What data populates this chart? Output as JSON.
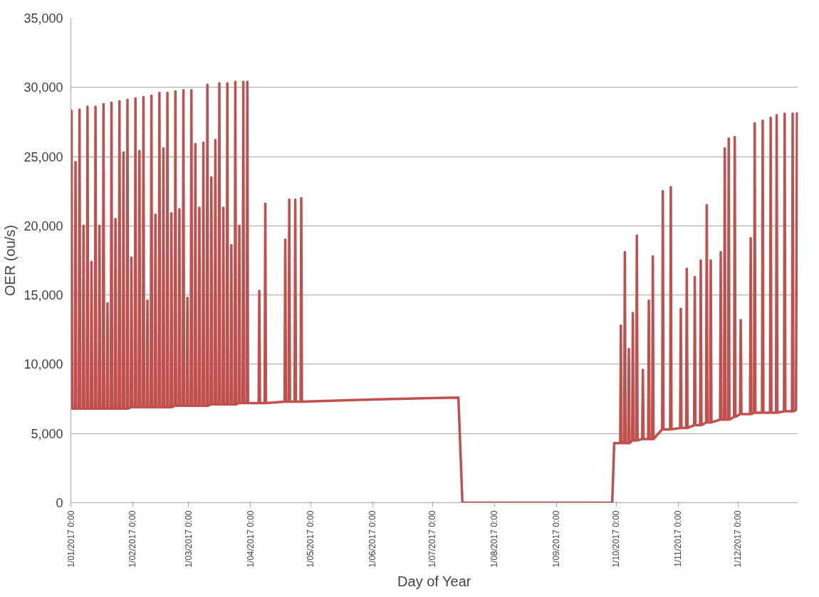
{
  "chart_data": {
    "type": "line",
    "xlabel": "Day of Year",
    "ylabel": "OER (ou/s)",
    "xlim": [
      "2017-01-01",
      "2017-12-31"
    ],
    "xticks": [
      {
        "value": "2017-01-01",
        "label": "1/01/2017 0:00"
      },
      {
        "value": "2017-02-01",
        "label": "1/02/2017 0:00"
      },
      {
        "value": "2017-03-01",
        "label": "1/03/2017 0:00"
      },
      {
        "value": "2017-04-01",
        "label": "1/04/2017 0:00"
      },
      {
        "value": "2017-05-01",
        "label": "1/05/2017 0:00"
      },
      {
        "value": "2017-06-01",
        "label": "1/06/2017 0:00"
      },
      {
        "value": "2017-07-01",
        "label": "1/07/2017 0:00"
      },
      {
        "value": "2017-08-01",
        "label": "1/08/2017 0:00"
      },
      {
        "value": "2017-09-01",
        "label": "1/09/2017 0:00"
      },
      {
        "value": "2017-10-01",
        "label": "1/10/2017 0:00"
      },
      {
        "value": "2017-11-01",
        "label": "1/11/2017 0:00"
      },
      {
        "value": "2017-12-01",
        "label": "1/12/2017 0:00"
      }
    ],
    "ylim": [
      0,
      35000
    ],
    "yticks": [
      0,
      {
        "value": 5000,
        "label": "5,000"
      },
      {
        "value": 10000,
        "label": "10,000"
      },
      {
        "value": 15000,
        "label": "15,000"
      },
      {
        "value": 20000,
        "label": "20,000"
      },
      {
        "value": 25000,
        "label": "25,000"
      },
      {
        "value": 30000,
        "label": "30,000"
      },
      {
        "value": 35000,
        "label": "35,000"
      }
    ],
    "grid": "y",
    "marker": "none",
    "line_style": "solid",
    "series": [
      {
        "color": "#c0504d",
        "x": [
          "2017-01-01T00:00",
          "2017-01-01T08:00",
          "2017-01-01T16:00",
          "2017-01-03T00:00",
          "2017-01-03T08:00",
          "2017-01-03T16:00",
          "2017-01-05T00:00",
          "2017-01-05T08:00",
          "2017-01-05T16:00",
          "2017-01-07T00:00",
          "2017-01-07T08:00",
          "2017-01-07T16:00",
          "2017-01-09T00:00",
          "2017-01-09T08:00",
          "2017-01-09T16:00",
          "2017-01-11T00:00",
          "2017-01-11T08:00",
          "2017-01-11T16:00",
          "2017-01-13T00:00",
          "2017-01-13T08:00",
          "2017-01-13T16:00",
          "2017-01-15T00:00",
          "2017-01-15T08:00",
          "2017-01-15T16:00",
          "2017-01-17T00:00",
          "2017-01-17T08:00",
          "2017-01-17T16:00",
          "2017-01-19T00:00",
          "2017-01-19T08:00",
          "2017-01-19T16:00",
          "2017-01-21T00:00",
          "2017-01-21T08:00",
          "2017-01-21T16:00",
          "2017-01-23T00:00",
          "2017-01-23T08:00",
          "2017-01-23T16:00",
          "2017-01-25T00:00",
          "2017-01-25T08:00",
          "2017-01-25T16:00",
          "2017-01-27T00:00",
          "2017-01-27T08:00",
          "2017-01-27T16:00",
          "2017-01-29T00:00",
          "2017-01-29T08:00",
          "2017-01-29T16:00",
          "2017-01-31T00:00",
          "2017-01-31T08:00",
          "2017-01-31T16:00",
          "2017-02-02T00:00",
          "2017-02-02T08:00",
          "2017-02-02T16:00",
          "2017-02-04T00:00",
          "2017-02-04T08:00",
          "2017-02-04T16:00",
          "2017-02-06T00:00",
          "2017-02-06T08:00",
          "2017-02-06T16:00",
          "2017-02-08T00:00",
          "2017-02-08T08:00",
          "2017-02-08T16:00",
          "2017-02-10T00:00",
          "2017-02-10T08:00",
          "2017-02-10T16:00",
          "2017-02-12T00:00",
          "2017-02-12T08:00",
          "2017-02-12T16:00",
          "2017-02-14T00:00",
          "2017-02-14T08:00",
          "2017-02-14T16:00",
          "2017-02-16T00:00",
          "2017-02-16T08:00",
          "2017-02-16T16:00",
          "2017-02-18T00:00",
          "2017-02-18T08:00",
          "2017-02-18T16:00",
          "2017-02-20T00:00",
          "2017-02-20T08:00",
          "2017-02-20T16:00",
          "2017-02-22T00:00",
          "2017-02-22T08:00",
          "2017-02-22T16:00",
          "2017-02-24T00:00",
          "2017-02-24T08:00",
          "2017-02-24T16:00",
          "2017-02-26T00:00",
          "2017-02-26T08:00",
          "2017-02-26T16:00",
          "2017-02-28T00:00",
          "2017-02-28T08:00",
          "2017-02-28T16:00",
          "2017-03-02T00:00",
          "2017-03-02T08:00",
          "2017-03-02T16:00",
          "2017-03-04T00:00",
          "2017-03-04T08:00",
          "2017-03-04T16:00",
          "2017-03-06T00:00",
          "2017-03-06T08:00",
          "2017-03-06T16:00",
          "2017-03-08T00:00",
          "2017-03-08T08:00",
          "2017-03-08T16:00",
          "2017-03-10T00:00",
          "2017-03-10T08:00",
          "2017-03-10T16:00",
          "2017-03-12T00:00",
          "2017-03-12T08:00",
          "2017-03-12T16:00",
          "2017-03-14T00:00",
          "2017-03-14T08:00",
          "2017-03-14T16:00",
          "2017-03-16T00:00",
          "2017-03-16T08:00",
          "2017-03-16T16:00",
          "2017-03-18T00:00",
          "2017-03-18T08:00",
          "2017-03-18T16:00",
          "2017-03-20T00:00",
          "2017-03-20T08:00",
          "2017-03-20T16:00",
          "2017-03-22T00:00",
          "2017-03-22T08:00",
          "2017-03-22T16:00",
          "2017-03-24T00:00",
          "2017-03-24T08:00",
          "2017-03-24T16:00",
          "2017-03-26T00:00",
          "2017-03-26T08:00",
          "2017-03-26T16:00",
          "2017-03-28T00:00",
          "2017-03-28T08:00",
          "2017-03-28T16:00",
          "2017-03-30T00:00",
          "2017-03-30T08:00",
          "2017-03-30T16:00",
          "2017-04-05T00:00",
          "2017-04-05T08:00",
          "2017-04-05T16:00",
          "2017-04-08T00:00",
          "2017-04-08T08:00",
          "2017-04-08T16:00",
          "2017-04-18T00:00",
          "2017-04-18T08:00",
          "2017-04-18T16:00",
          "2017-04-20T00:00",
          "2017-04-20T08:00",
          "2017-04-20T16:00",
          "2017-04-23T00:00",
          "2017-04-23T08:00",
          "2017-04-23T16:00",
          "2017-04-26T00:00",
          "2017-04-26T08:00",
          "2017-04-26T16:00",
          "2017-05-31T00:00",
          "2017-06-30T00:00",
          "2017-07-14T00:00",
          "2017-07-16T00:00",
          "2017-09-29T00:00",
          "2017-09-30T00:00",
          "2017-10-03T00:00",
          "2017-10-03T08:00",
          "2017-10-03T16:00",
          "2017-10-05T00:00",
          "2017-10-05T08:00",
          "2017-10-05T16:00",
          "2017-10-07T00:00",
          "2017-10-07T08:00",
          "2017-10-07T16:00",
          "2017-10-09T00:00",
          "2017-10-09T08:00",
          "2017-10-09T16:00",
          "2017-10-11T00:00",
          "2017-10-11T08:00",
          "2017-10-11T16:00",
          "2017-10-14T00:00",
          "2017-10-14T08:00",
          "2017-10-14T16:00",
          "2017-10-17T00:00",
          "2017-10-17T08:00",
          "2017-10-17T16:00",
          "2017-10-19T00:00",
          "2017-10-19T08:00",
          "2017-10-19T16:00",
          "2017-10-24T00:00",
          "2017-10-24T08:00",
          "2017-10-24T16:00",
          "2017-10-28T00:00",
          "2017-10-28T08:00",
          "2017-10-28T16:00",
          "2017-11-02T00:00",
          "2017-11-02T08:00",
          "2017-11-02T16:00",
          "2017-11-05T00:00",
          "2017-11-05T08:00",
          "2017-11-05T16:00",
          "2017-11-09T00:00",
          "2017-11-09T08:00",
          "2017-11-09T16:00",
          "2017-11-12T00:00",
          "2017-11-12T08:00",
          "2017-11-12T16:00",
          "2017-11-15T00:00",
          "2017-11-15T08:00",
          "2017-11-15T16:00",
          "2017-11-17T00:00",
          "2017-11-17T08:00",
          "2017-11-17T16:00",
          "2017-11-22T00:00",
          "2017-11-22T08:00",
          "2017-11-22T16:00",
          "2017-11-24T00:00",
          "2017-11-24T08:00",
          "2017-11-24T16:00",
          "2017-11-26T00:00",
          "2017-11-26T08:00",
          "2017-11-26T16:00",
          "2017-11-29T00:00",
          "2017-11-29T08:00",
          "2017-11-29T16:00",
          "2017-12-02T00:00",
          "2017-12-02T08:00",
          "2017-12-02T16:00",
          "2017-12-07T00:00",
          "2017-12-07T08:00",
          "2017-12-07T16:00",
          "2017-12-09T00:00",
          "2017-12-09T08:00",
          "2017-12-09T16:00",
          "2017-12-13T00:00",
          "2017-12-13T08:00",
          "2017-12-13T16:00",
          "2017-12-17T00:00",
          "2017-12-17T08:00",
          "2017-12-17T16:00",
          "2017-12-20T00:00",
          "2017-12-20T08:00",
          "2017-12-20T16:00",
          "2017-12-24T00:00",
          "2017-12-24T08:00",
          "2017-12-24T16:00",
          "2017-12-28T00:00",
          "2017-12-28T08:00",
          "2017-12-28T16:00",
          "2017-12-30T00:00",
          "2017-12-30T12:00"
        ],
        "values": [
          6800,
          28300,
          6800,
          6800,
          24600,
          6800,
          6800,
          28400,
          6800,
          6800,
          20000,
          6800,
          6800,
          28600,
          6800,
          6800,
          17400,
          6800,
          6800,
          28600,
          6800,
          6800,
          20000,
          6800,
          6800,
          28800,
          6800,
          6800,
          14400,
          6800,
          6800,
          28900,
          6800,
          6800,
          20500,
          6800,
          6800,
          29000,
          6800,
          6800,
          25300,
          6800,
          6800,
          29100,
          6800,
          6900,
          17700,
          6900,
          6900,
          29200,
          6900,
          6900,
          25400,
          6900,
          6900,
          29300,
          6900,
          6900,
          14600,
          6900,
          6900,
          29400,
          6900,
          6900,
          20800,
          6900,
          6900,
          29600,
          6900,
          6900,
          25600,
          6900,
          6900,
          29600,
          6900,
          6900,
          20900,
          6900,
          7000,
          29700,
          7000,
          7000,
          21200,
          7000,
          7000,
          29800,
          7000,
          7000,
          14800,
          7000,
          7000,
          29800,
          7000,
          7000,
          25900,
          7000,
          7000,
          21300,
          7000,
          7000,
          26000,
          7000,
          7000,
          30200,
          7000,
          7100,
          23500,
          7100,
          7100,
          26200,
          7100,
          7100,
          30300,
          7100,
          7100,
          21300,
          7100,
          7100,
          30300,
          7100,
          7100,
          18600,
          7100,
          7100,
          30400,
          7100,
          7200,
          20000,
          7200,
          7200,
          30400,
          7200,
          7200,
          30400,
          7200,
          7200,
          15300,
          7200,
          7200,
          21600,
          7200,
          7300,
          19000,
          7300,
          7300,
          21900,
          7300,
          7300,
          21900,
          7300,
          7300,
          22000,
          7300,
          7450,
          7550,
          7600,
          0,
          0,
          4300,
          4300,
          12800,
          4300,
          4300,
          18100,
          4300,
          4300,
          11100,
          4300,
          4500,
          13700,
          4500,
          4500,
          19300,
          4500,
          4600,
          9600,
          4600,
          4600,
          14600,
          4600,
          4600,
          17800,
          4600,
          5300,
          22500,
          5300,
          5300,
          22800,
          5300,
          5400,
          14000,
          5400,
          5400,
          16900,
          5400,
          5600,
          16300,
          5600,
          5600,
          17500,
          5600,
          5800,
          21500,
          5800,
          5800,
          17500,
          5800,
          6000,
          18100,
          6000,
          6000,
          25600,
          6000,
          6000,
          26300,
          6000,
          6200,
          26400,
          6200,
          6400,
          13200,
          6400,
          6400,
          19100,
          6400,
          6500,
          27400,
          6500,
          6500,
          27600,
          6500,
          6500,
          27800,
          6500,
          6500,
          28000,
          6500,
          6600,
          28100,
          6600,
          6600,
          28100,
          6600,
          6700,
          28200
        ]
      }
    ]
  }
}
